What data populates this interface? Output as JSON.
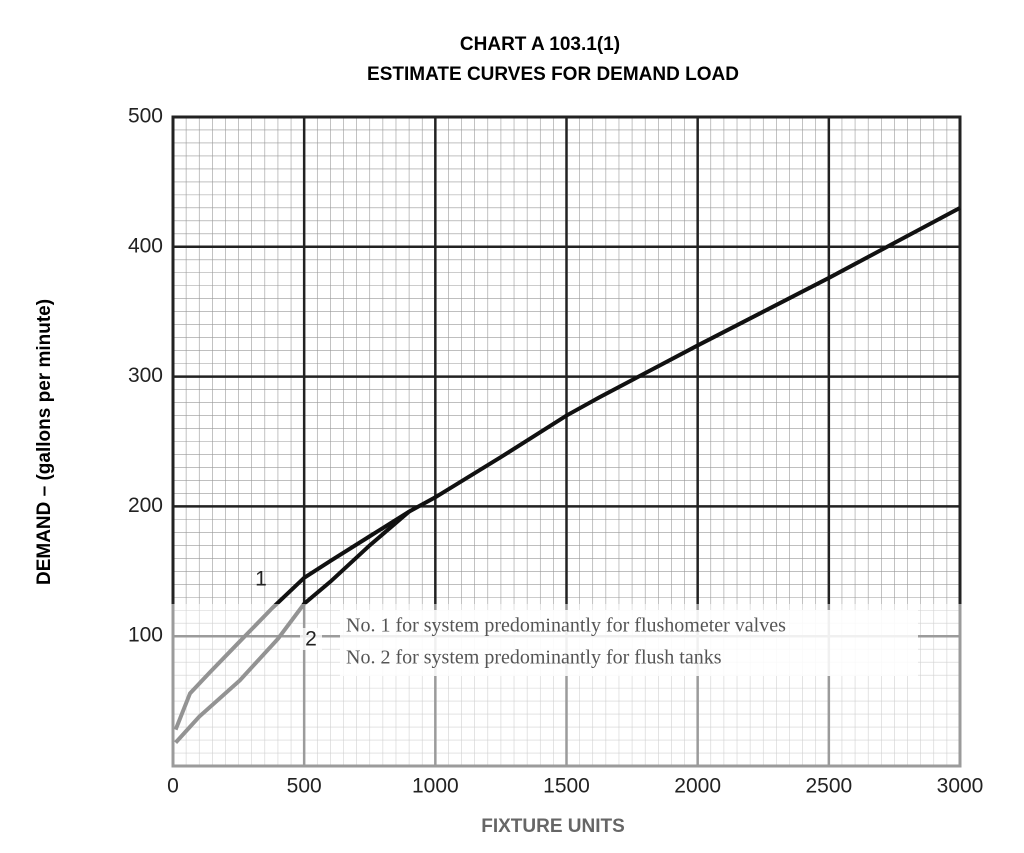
{
  "chart_data": {
    "type": "line",
    "title": "CHART A 103.1(1)",
    "subtitle": "ESTIMATE CURVES FOR DEMAND LOAD",
    "x_label": "FIXTURE UNITS",
    "y_label": "DEMAND – (gallons per minute)",
    "xlim": [
      0,
      3000
    ],
    "xticks": [
      0,
      500,
      1000,
      1500,
      2000,
      2500,
      3000
    ],
    "ylim": [
      0,
      500
    ],
    "yticks": [
      100,
      200,
      300,
      400,
      500
    ],
    "grid": true,
    "minor_xstep": 50,
    "minor_ystep": 10,
    "notes": [
      "No. 1 for system predominantly for flushometer valves",
      "No. 2 for system predominantly for flush tanks"
    ],
    "series": [
      {
        "name": "1",
        "color": "#111111",
        "x": [
          10,
          65,
          140,
          250,
          380,
          500,
          600,
          750,
          900,
          1000,
          1250,
          1500,
          1625,
          2000,
          2250,
          2500,
          2750,
          3000
        ],
        "values": [
          28,
          56,
          72,
          95,
          122,
          145,
          158,
          177,
          196,
          207,
          238,
          270,
          284,
          324,
          350,
          376,
          403,
          430
        ]
      },
      {
        "name": "2",
        "color": "#111111",
        "x": [
          10,
          100,
          255,
          400,
          500,
          600,
          750,
          900
        ],
        "values": [
          18,
          38,
          66,
          98,
          125,
          142,
          170,
          196
        ]
      }
    ]
  }
}
